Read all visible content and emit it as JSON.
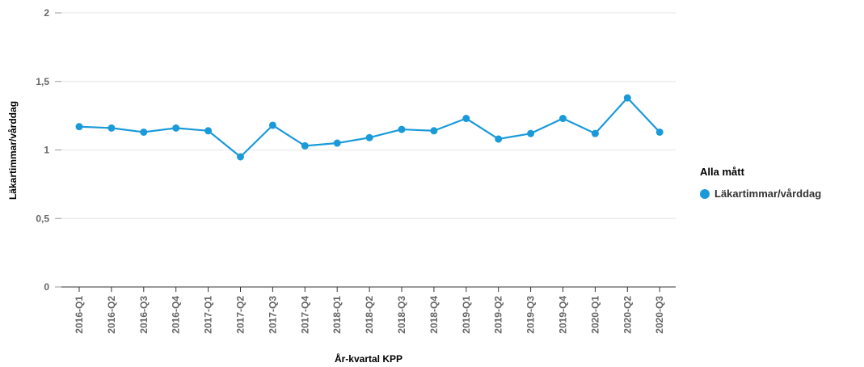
{
  "chart_data": {
    "type": "line",
    "xlabel": "År-kvartal KPP",
    "ylabel": "Läkartimmar/vårddag",
    "ylim": [
      0,
      2
    ],
    "yticks": [
      0,
      0.5,
      1,
      1.5,
      2
    ],
    "ytick_labels": [
      "0",
      "0,5",
      "1",
      "1,5",
      "2"
    ],
    "grid": true,
    "legend_position": "right",
    "categories": [
      "2016-Q1",
      "2016-Q2",
      "2016-Q3",
      "2016-Q4",
      "2017-Q1",
      "2017-Q2",
      "2017-Q3",
      "2017-Q4",
      "2018-Q1",
      "2018-Q2",
      "2018-Q3",
      "2018-Q4",
      "2019-Q1",
      "2019-Q2",
      "2019-Q3",
      "2019-Q4",
      "2020-Q1",
      "2020-Q2",
      "2020-Q3"
    ],
    "series": [
      {
        "name": "Läkartimmar/vårddag",
        "color": "#1a9ad9",
        "values": [
          1.17,
          1.16,
          1.13,
          1.16,
          1.14,
          0.95,
          1.18,
          1.03,
          1.05,
          1.09,
          1.15,
          1.14,
          1.23,
          1.08,
          1.12,
          1.23,
          1.12,
          1.38,
          1.13
        ]
      }
    ]
  },
  "legend": {
    "title": "Alla mått",
    "items": [
      {
        "label": "Läkartimmar/vårddag",
        "color": "#1a9ad9"
      }
    ]
  }
}
